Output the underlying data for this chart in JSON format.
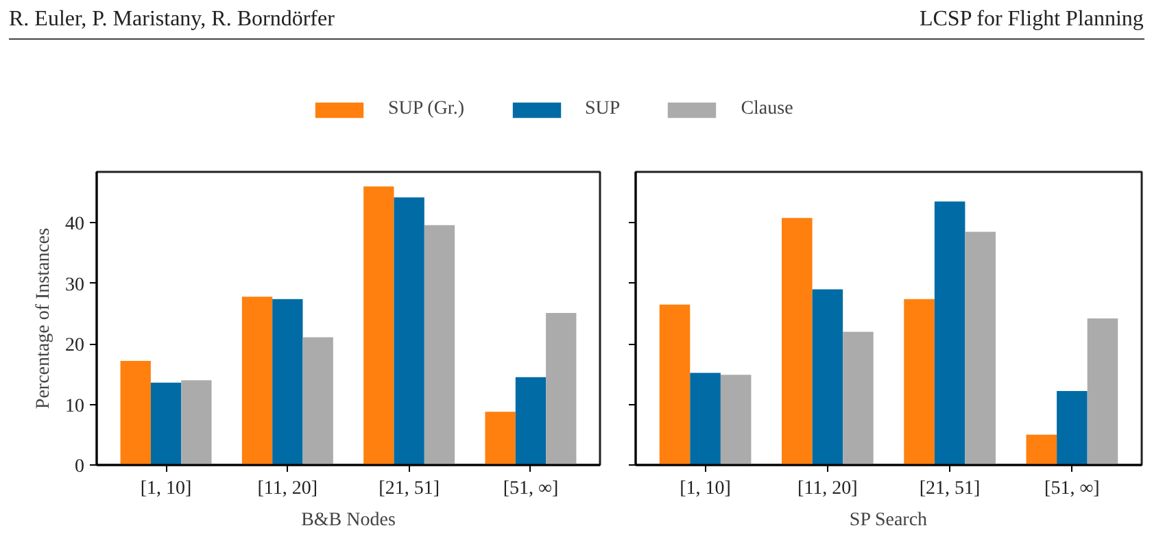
{
  "chart_data": [
    {
      "type": "bar",
      "xlabel": "B&B Nodes",
      "ylabel": "Percentage of Instances",
      "annotations": [
        "R. Euler, P. Maristany, R. Borndörfer",
        "LCSP for Flight Planning"
      ],
      "categories": [
        "[1, 10]",
        "[11, 20]",
        "[21, 51]",
        "[51, ∞]"
      ],
      "series": [
        {
          "name": "SUP (Gr.)",
          "color": "#ff800e",
          "values": [
            17.2,
            27.8,
            46.0,
            8.8
          ]
        },
        {
          "name": "SUP",
          "color": "#006ba4",
          "values": [
            13.6,
            27.4,
            44.2,
            14.5
          ]
        },
        {
          "name": "Clause",
          "color": "#ababab",
          "values": [
            14.0,
            21.1,
            39.6,
            25.1
          ]
        }
      ],
      "ylim": [
        0,
        48.4
      ],
      "yticks": [
        0,
        10,
        20,
        30,
        40
      ],
      "legend": "top",
      "grid": false
    },
    {
      "type": "bar",
      "xlabel": "SP Search",
      "categories": [
        "[1, 10]",
        "[11, 20]",
        "[21, 51]",
        "[51, ∞]"
      ],
      "series": [
        {
          "color": "#ff800e",
          "values": [
            26.5,
            40.8,
            27.4,
            5.0
          ]
        },
        {
          "color": "#006ba4",
          "values": [
            15.2,
            29.0,
            43.5,
            12.2
          ]
        },
        {
          "color": "#ababab",
          "values": [
            14.9,
            22.0,
            38.5,
            24.2
          ]
        }
      ],
      "ylim": [
        0,
        48.4
      ],
      "yticks": [
        0,
        10,
        20,
        30,
        40
      ],
      "tick_labels": "x",
      "grid": false
    }
  ]
}
